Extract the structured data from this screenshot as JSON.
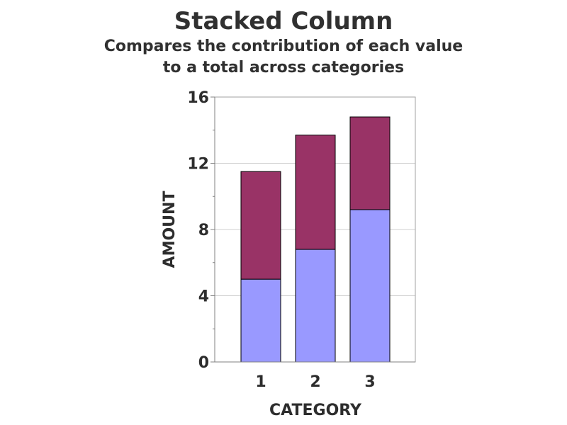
{
  "chart_data": {
    "type": "bar",
    "stacked": true,
    "title": "Stacked Column",
    "subtitle_line1": "Compares the contribution of each value",
    "subtitle_line2": "to a total across categories",
    "xlabel": "CATEGORY",
    "ylabel": "AMOUNT",
    "categories": [
      "1",
      "2",
      "3"
    ],
    "ylim": [
      0,
      16
    ],
    "yticks": [
      "0",
      "4",
      "8",
      "12",
      "16"
    ],
    "grid": true,
    "series": [
      {
        "color": "#9999ff",
        "values": [
          5.0,
          6.8,
          9.2
        ]
      },
      {
        "color": "#993366",
        "values": [
          6.5,
          6.9,
          5.6
        ]
      }
    ]
  }
}
